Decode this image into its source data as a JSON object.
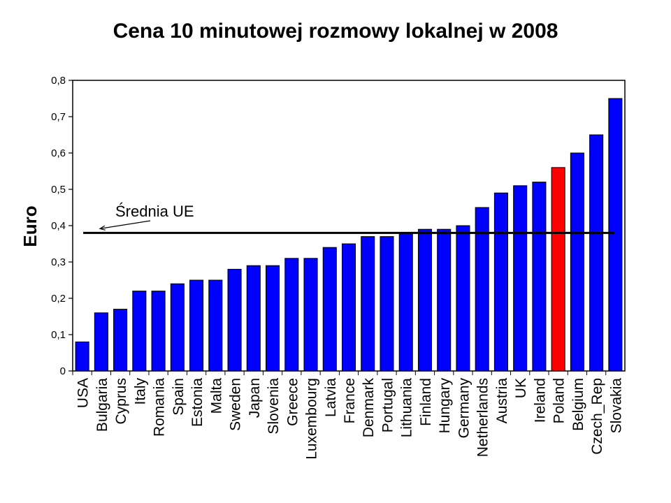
{
  "chart_data": {
    "type": "bar",
    "title": "Cena 10 minutowej rozmowy lokalnej w 2008",
    "xlabel": "",
    "ylabel": "Euro",
    "ylim": [
      0,
      0.8
    ],
    "yticks": [
      "0",
      "0,1",
      "0,2",
      "0,3",
      "0,4",
      "0,5",
      "0,6",
      "0,7",
      "0,8"
    ],
    "grid": false,
    "categories": [
      "USA",
      "Bulgaria",
      "Cyprus",
      "Italy",
      "Romania",
      "Spain",
      "Estonia",
      "Malta",
      "Sweden",
      "Japan",
      "Slovenia",
      "Greece",
      "Luxembourg",
      "Latvia",
      "France",
      "Denmark",
      "Portugal",
      "Lithuania",
      "Finland",
      "Hungary",
      "Germany",
      "Netherlands",
      "Austria",
      "UK",
      "Ireland",
      "Poland",
      "Belgium",
      "Czech_Rep",
      "Slovakia"
    ],
    "values": [
      0.08,
      0.16,
      0.17,
      0.22,
      0.22,
      0.24,
      0.25,
      0.25,
      0.28,
      0.29,
      0.29,
      0.31,
      0.31,
      0.34,
      0.35,
      0.37,
      0.37,
      0.38,
      0.39,
      0.39,
      0.4,
      0.45,
      0.49,
      0.51,
      0.52,
      0.56,
      0.6,
      0.65,
      0.75
    ],
    "colors": {
      "default": "#0000ff",
      "highlight": "#ff0000",
      "highlight_category": "Poland",
      "reference_line": "#000000"
    },
    "reference_line": {
      "value": 0.38,
      "label": "Średnia UE"
    }
  }
}
